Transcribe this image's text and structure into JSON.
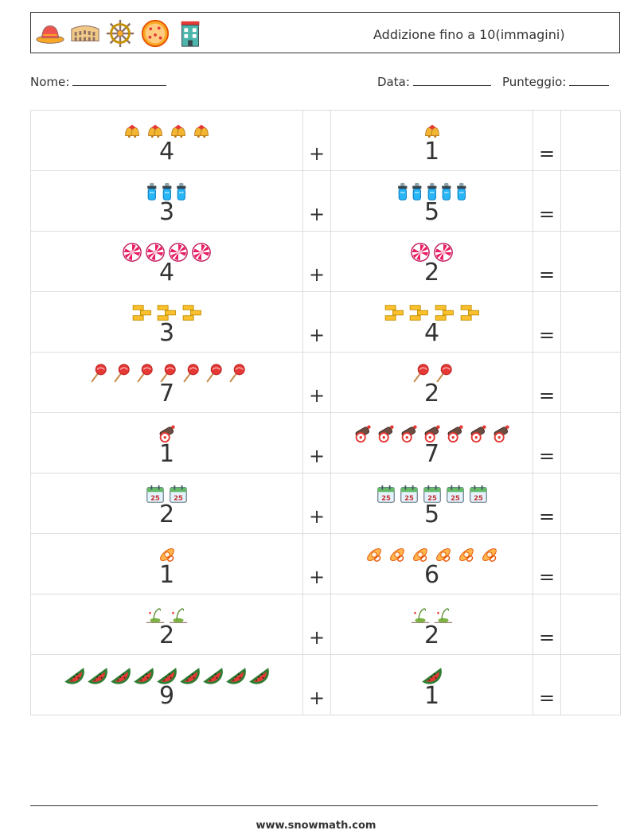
{
  "header": {
    "title": "Addizione fino a 10(immagini)",
    "icons": [
      "sombrero-icon",
      "colosseum-icon",
      "ship-wheel-icon",
      "pizza-icon",
      "building-icon"
    ]
  },
  "meta": {
    "name_label": "Nome:",
    "date_label": "Data:",
    "score_label": "Punteggio:"
  },
  "symbols": {
    "plus": "+",
    "equals": "="
  },
  "problems": [
    {
      "left": {
        "count": 4,
        "icon": "bells-icon",
        "text": "4"
      },
      "right": {
        "count": 1,
        "icon": "bells-icon",
        "text": "1"
      }
    },
    {
      "left": {
        "count": 3,
        "icon": "baby-bottle-icon",
        "text": "3"
      },
      "right": {
        "count": 5,
        "icon": "baby-bottle-icon",
        "text": "5"
      }
    },
    {
      "left": {
        "count": 4,
        "icon": "peppermint-candy-icon",
        "text": "4"
      },
      "right": {
        "count": 2,
        "icon": "peppermint-candy-icon",
        "text": "2"
      }
    },
    {
      "left": {
        "count": 3,
        "icon": "gold-bars-icon",
        "text": "3"
      },
      "right": {
        "count": 4,
        "icon": "gold-bars-icon",
        "text": "4"
      }
    },
    {
      "left": {
        "count": 7,
        "icon": "lollipop-icon",
        "text": "7"
      },
      "right": {
        "count": 2,
        "icon": "lollipop-icon",
        "text": "2"
      }
    },
    {
      "left": {
        "count": 1,
        "icon": "cannon-icon",
        "text": "1"
      },
      "right": {
        "count": 7,
        "icon": "cannon-icon",
        "text": "7"
      }
    },
    {
      "left": {
        "count": 2,
        "icon": "calendar-25-icon",
        "text": "2"
      },
      "right": {
        "count": 5,
        "icon": "calendar-25-icon",
        "text": "5"
      }
    },
    {
      "left": {
        "count": 1,
        "icon": "pacifier-icon",
        "text": "1"
      },
      "right": {
        "count": 6,
        "icon": "pacifier-icon",
        "text": "6"
      }
    },
    {
      "left": {
        "count": 2,
        "icon": "sprout-icon",
        "text": "2"
      },
      "right": {
        "count": 2,
        "icon": "sprout-icon",
        "text": "2"
      }
    },
    {
      "left": {
        "count": 9,
        "icon": "watermelon-icon",
        "text": "9"
      },
      "right": {
        "count": 1,
        "icon": "watermelon-icon",
        "text": "1"
      }
    }
  ],
  "footer": {
    "website": "www.snowmath.com"
  }
}
